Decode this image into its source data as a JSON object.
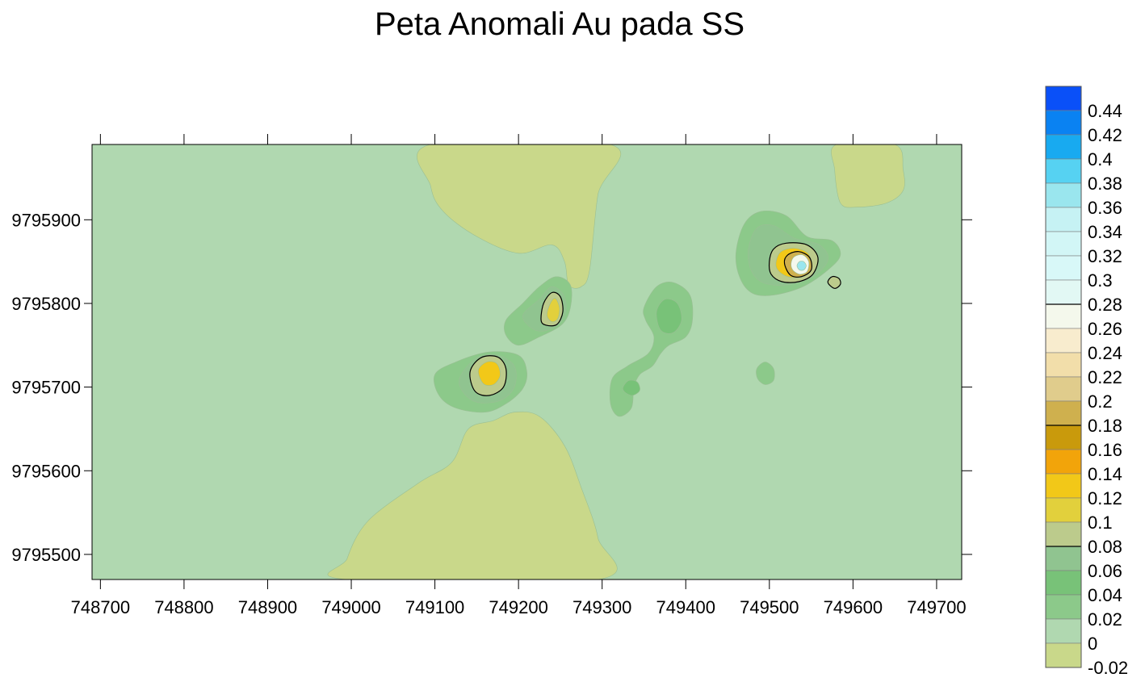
{
  "chart_data": {
    "type": "heatmap",
    "title": "Peta Anomali Au pada SS",
    "xlabel": "",
    "ylabel": "",
    "xlim": [
      748690,
      749730
    ],
    "ylim": [
      9795470,
      9795990
    ],
    "x_ticks": [
      748700,
      748800,
      748900,
      749000,
      749100,
      749200,
      749300,
      749400,
      749500,
      749600,
      749700
    ],
    "y_ticks": [
      9795500,
      9795600,
      9795700,
      9795800,
      9795900
    ],
    "background_level": 0.0,
    "background_color": "#b0d8b0",
    "contour_line_levels": [
      0.08,
      0.18,
      0.28
    ],
    "levels": [
      -0.02,
      0,
      0.02,
      0.04,
      0.06,
      0.08,
      0.1,
      0.12,
      0.14,
      0.16,
      0.18,
      0.2,
      0.22,
      0.24,
      0.26,
      0.28,
      0.3,
      0.32,
      0.34,
      0.36,
      0.38,
      0.4,
      0.42,
      0.44
    ],
    "level_colors": [
      "#c9d88a",
      "#b0d8b0",
      "#8cc98a",
      "#78c278",
      "#90c490",
      "#bccb8c",
      "#e2d03c",
      "#f2c818",
      "#f2a40a",
      "#c99a0c",
      "#cfb04e",
      "#e0cc8c",
      "#f2deaa",
      "#f8ecce",
      "#f4f8ec",
      "#e2f8f4",
      "#d8f8f8",
      "#d2f6f6",
      "#c6f2f4",
      "#9ae6ee",
      "#56d2f2",
      "#18aaf0",
      "#0a82f2",
      "#0a50f8"
    ],
    "features": [
      {
        "name": "negative-zone-north",
        "value": -0.02,
        "points": [
          [
            749095,
            9795990
          ],
          [
            749310,
            9795990
          ],
          [
            749295,
            9795930
          ],
          [
            749285,
            9795840
          ],
          [
            749275,
            9795820
          ],
          [
            749260,
            9795822
          ],
          [
            749255,
            9795850
          ],
          [
            749240,
            9795870
          ],
          [
            749200,
            9795860
          ],
          [
            749150,
            9795880
          ],
          [
            749110,
            9795910
          ],
          [
            749095,
            9795940
          ]
        ]
      },
      {
        "name": "negative-zone-south",
        "value": -0.02,
        "points": [
          [
            748995,
            9795470
          ],
          [
            749295,
            9795470
          ],
          [
            749295,
            9795520
          ],
          [
            749275,
            9795580
          ],
          [
            749255,
            9795630
          ],
          [
            749225,
            9795665
          ],
          [
            749195,
            9795670
          ],
          [
            749170,
            9795660
          ],
          [
            749140,
            9795650
          ],
          [
            749120,
            9795610
          ],
          [
            749080,
            9795585
          ],
          [
            749020,
            9795540
          ],
          [
            748995,
            9795495
          ]
        ]
      },
      {
        "name": "negative-zone-northeast",
        "value": -0.02,
        "points": [
          [
            749580,
            9795990
          ],
          [
            749650,
            9795990
          ],
          [
            749660,
            9795960
          ],
          [
            749660,
            9795935
          ],
          [
            749640,
            9795920
          ],
          [
            749605,
            9795915
          ],
          [
            749585,
            9795920
          ],
          [
            749578,
            9795960
          ]
        ]
      },
      {
        "name": "anomaly-se-outer",
        "value": 0.02,
        "points": [
          [
            749100,
            9795715
          ],
          [
            749125,
            9795730
          ],
          [
            749165,
            9795742
          ],
          [
            749200,
            9795738
          ],
          [
            749210,
            9795718
          ],
          [
            749205,
            9795698
          ],
          [
            749185,
            9795680
          ],
          [
            749160,
            9795670
          ],
          [
            749125,
            9795675
          ],
          [
            749105,
            9795690
          ]
        ]
      },
      {
        "name": "anomaly-se-mid",
        "value": 0.06,
        "points": [
          [
            749130,
            9795712
          ],
          [
            749150,
            9795735
          ],
          [
            749175,
            9795738
          ],
          [
            749195,
            9795725
          ],
          [
            749195,
            9795700
          ],
          [
            749178,
            9795684
          ],
          [
            749150,
            9795682
          ],
          [
            749133,
            9795695
          ]
        ]
      },
      {
        "name": "anomaly-se-core",
        "value": 0.08,
        "points": [
          [
            749142,
            9795718
          ],
          [
            749155,
            9795735
          ],
          [
            749175,
            9795736
          ],
          [
            749185,
            9795722
          ],
          [
            749182,
            9795700
          ],
          [
            749165,
            9795690
          ],
          [
            749148,
            9795695
          ]
        ]
      },
      {
        "name": "anomaly-se-peak",
        "value": 0.12,
        "points": [
          [
            749152,
            9795720
          ],
          [
            749162,
            9795730
          ],
          [
            749174,
            9795728
          ],
          [
            749178,
            9795714
          ],
          [
            749170,
            9795703
          ],
          [
            749158,
            9795704
          ]
        ]
      },
      {
        "name": "anomaly-c-outer",
        "value": 0.02,
        "points": [
          [
            749185,
            9795780
          ],
          [
            749205,
            9795800
          ],
          [
            749225,
            9795820
          ],
          [
            749245,
            9795832
          ],
          [
            749262,
            9795822
          ],
          [
            749262,
            9795795
          ],
          [
            749252,
            9795775
          ],
          [
            749225,
            9795760
          ],
          [
            749200,
            9795750
          ],
          [
            749185,
            9795762
          ]
        ]
      },
      {
        "name": "anomaly-c-mid",
        "value": 0.06,
        "points": [
          [
            749205,
            9795785
          ],
          [
            749225,
            9795805
          ],
          [
            749240,
            9795820
          ],
          [
            749255,
            9795808
          ],
          [
            749255,
            9795785
          ],
          [
            749240,
            9795770
          ],
          [
            749220,
            9795768
          ]
        ]
      },
      {
        "name": "anomaly-c-core",
        "value": 0.08,
        "points": [
          [
            749227,
            9795780
          ],
          [
            749230,
            9795800
          ],
          [
            749240,
            9795813
          ],
          [
            749250,
            9795808
          ],
          [
            749253,
            9795790
          ],
          [
            749246,
            9795775
          ],
          [
            749233,
            9795774
          ]
        ]
      },
      {
        "name": "anomaly-c-peak",
        "value": 0.1,
        "points": [
          [
            749234,
            9795786
          ],
          [
            749238,
            9795800
          ],
          [
            749244,
            9795806
          ],
          [
            749249,
            9795795
          ],
          [
            749247,
            9795782
          ],
          [
            749240,
            9795778
          ]
        ]
      },
      {
        "name": "anomaly-e-outer",
        "value": 0.02,
        "points": [
          [
            749350,
            9795795
          ],
          [
            749365,
            9795820
          ],
          [
            749385,
            9795825
          ],
          [
            749405,
            9795810
          ],
          [
            749408,
            9795780
          ],
          [
            749400,
            9795760
          ],
          [
            749380,
            9795750
          ],
          [
            749370,
            9795740
          ],
          [
            749360,
            9795725
          ],
          [
            749345,
            9795715
          ],
          [
            749338,
            9795700
          ],
          [
            749335,
            9795675
          ],
          [
            749320,
            9795665
          ],
          [
            749310,
            9795680
          ],
          [
            749312,
            9795710
          ],
          [
            749330,
            9795725
          ],
          [
            749355,
            9795740
          ],
          [
            749362,
            9795760
          ],
          [
            749352,
            9795780
          ]
        ]
      },
      {
        "name": "anomaly-e-inner",
        "value": 0.04,
        "points": [
          [
            749365,
            9795790
          ],
          [
            749375,
            9795805
          ],
          [
            749390,
            9795800
          ],
          [
            749395,
            9795780
          ],
          [
            749385,
            9795765
          ],
          [
            749370,
            9795768
          ]
        ]
      },
      {
        "name": "anomaly-e-dot",
        "value": 0.04,
        "points": [
          [
            749325,
            9795700
          ],
          [
            749332,
            9795708
          ],
          [
            749342,
            9795706
          ],
          [
            749345,
            9795696
          ],
          [
            749336,
            9795690
          ],
          [
            749327,
            9795694
          ]
        ]
      },
      {
        "name": "anomaly-e-small",
        "value": 0.02,
        "points": [
          [
            749485,
            9795722
          ],
          [
            749495,
            9795730
          ],
          [
            749505,
            9795722
          ],
          [
            749505,
            9795708
          ],
          [
            749495,
            9795703
          ],
          [
            749486,
            9795710
          ]
        ]
      },
      {
        "name": "anomaly-ne-outer",
        "value": 0.02,
        "points": [
          [
            749460,
            9795860
          ],
          [
            749470,
            9795895
          ],
          [
            749490,
            9795910
          ],
          [
            749520,
            9795905
          ],
          [
            749545,
            9795880
          ],
          [
            749575,
            9795875
          ],
          [
            749585,
            9795858
          ],
          [
            749570,
            9795840
          ],
          [
            749540,
            9795820
          ],
          [
            749505,
            9795810
          ],
          [
            749480,
            9795812
          ],
          [
            749465,
            9795830
          ]
        ]
      },
      {
        "name": "anomaly-ne-mid",
        "value": 0.06,
        "points": [
          [
            749475,
            9795865
          ],
          [
            749485,
            9795890
          ],
          [
            749505,
            9795893
          ],
          [
            749530,
            9795878
          ],
          [
            749560,
            9795870
          ],
          [
            749570,
            9795852
          ],
          [
            749552,
            9795832
          ],
          [
            749520,
            9795822
          ],
          [
            749492,
            9795825
          ],
          [
            749478,
            9795840
          ]
        ]
      },
      {
        "name": "anomaly-ne-core",
        "value": 0.08,
        "points": [
          [
            749500,
            9795850
          ],
          [
            749505,
            9795865
          ],
          [
            749520,
            9795872
          ],
          [
            749545,
            9795870
          ],
          [
            749558,
            9795855
          ],
          [
            749552,
            9795835
          ],
          [
            749535,
            9795826
          ],
          [
            749515,
            9795826
          ],
          [
            749502,
            9795835
          ]
        ]
      },
      {
        "name": "anomaly-ne-yellow",
        "value": 0.12,
        "points": [
          [
            749508,
            9795850
          ],
          [
            749514,
            9795862
          ],
          [
            749530,
            9795866
          ],
          [
            749546,
            9795860
          ],
          [
            749550,
            9795845
          ],
          [
            749540,
            9795832
          ],
          [
            749522,
            9795832
          ],
          [
            749510,
            9795840
          ]
        ]
      },
      {
        "name": "anomaly-ne-inner-ring",
        "value": 0.18,
        "points": [
          [
            749518,
            9795848
          ],
          [
            749522,
            9795858
          ],
          [
            749535,
            9795862
          ],
          [
            749548,
            9795855
          ],
          [
            749550,
            9795840
          ],
          [
            749538,
            9795832
          ],
          [
            749525,
            9795834
          ]
        ]
      },
      {
        "name": "anomaly-ne-highlight",
        "value": 0.26,
        "points": [
          [
            749526,
            9795848
          ],
          [
            749530,
            9795856
          ],
          [
            749540,
            9795858
          ],
          [
            749547,
            9795850
          ],
          [
            749545,
            9795838
          ],
          [
            749536,
            9795835
          ],
          [
            749528,
            9795840
          ]
        ]
      },
      {
        "name": "anomaly-ne-peak",
        "value": 0.36,
        "points": [
          [
            749533,
            9795845
          ],
          [
            749536,
            9795850
          ],
          [
            749541,
            9795850
          ],
          [
            749544,
            9795845
          ],
          [
            749541,
            9795840
          ],
          [
            749536,
            9795840
          ]
        ]
      },
      {
        "name": "anomaly-ne-speck",
        "value": 0.08,
        "points": [
          [
            749570,
            9795825
          ],
          [
            749575,
            9795832
          ],
          [
            749583,
            9795830
          ],
          [
            749585,
            9795823
          ],
          [
            749578,
            9795818
          ]
        ]
      }
    ]
  }
}
